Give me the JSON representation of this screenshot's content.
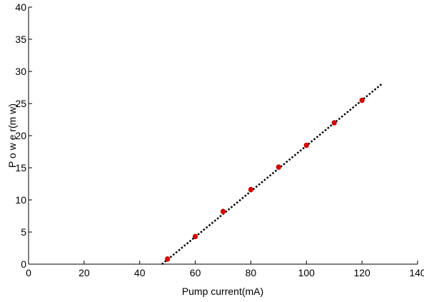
{
  "chart_data": {
    "type": "scatter",
    "title": "",
    "xlabel": "Pump current(mA)",
    "ylabel": "P o w e r(m w)",
    "xlim": [
      0,
      140
    ],
    "ylim": [
      0,
      40
    ],
    "xticks": [
      0,
      20,
      40,
      60,
      80,
      100,
      120,
      140
    ],
    "yticks": [
      0,
      5,
      10,
      15,
      20,
      25,
      30,
      35,
      40
    ],
    "grid": false,
    "legend": "none",
    "series": [
      {
        "kind": "points",
        "color": "#d40000",
        "x": [
          50,
          60,
          70,
          80,
          90,
          100,
          110,
          120
        ],
        "y": [
          0.8,
          4.3,
          8.2,
          11.6,
          15.1,
          18.5,
          22.0,
          25.5
        ]
      },
      {
        "kind": "fit-line",
        "style": "dotted",
        "color": "#000000",
        "x": [
          48,
          127
        ],
        "y": [
          0,
          28
        ]
      }
    ]
  }
}
